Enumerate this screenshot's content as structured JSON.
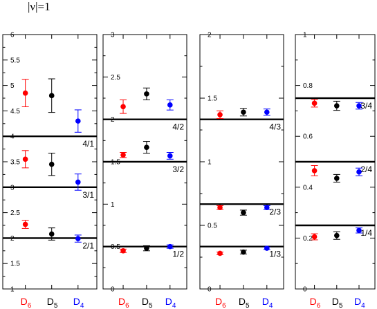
{
  "title": "|ν|=1",
  "colors": {
    "D6": "#ff0000",
    "D5": "#000000",
    "D4": "#0000ff"
  },
  "chart_data": [
    {
      "type": "scatter",
      "categories": [
        {
          "main": "D",
          "sub": "6",
          "color": "#ff0000"
        },
        {
          "main": "D",
          "sub": "5",
          "color": "#000000"
        },
        {
          "main": "D",
          "sub": "4",
          "color": "#0000ff"
        }
      ],
      "ylim": [
        1,
        6
      ],
      "yticks": [
        1,
        1.5,
        2,
        2.5,
        3,
        3.5,
        4,
        4.5,
        5,
        5.5,
        6
      ],
      "ytick_labels": [
        "1",
        "1.5",
        "2",
        "2.5",
        "3",
        "3.5",
        "4",
        "4.5",
        "5",
        "5.5",
        "6"
      ],
      "series": [
        {
          "color": "#ff0000",
          "x": 0,
          "points": [
            {
              "y": 4.85,
              "err": 0.27
            },
            {
              "y": 3.55,
              "err": 0.17
            },
            {
              "y": 2.27,
              "err": 0.08
            }
          ]
        },
        {
          "color": "#000000",
          "x": 1,
          "points": [
            {
              "y": 4.8,
              "err": 0.33
            },
            {
              "y": 3.45,
              "err": 0.22
            },
            {
              "y": 2.08,
              "err": 0.12
            }
          ]
        },
        {
          "color": "#0000ff",
          "x": 2,
          "points": [
            {
              "y": 4.3,
              "err": 0.22
            },
            {
              "y": 3.1,
              "err": 0.16
            },
            {
              "y": 1.99,
              "err": 0.07
            }
          ]
        }
      ],
      "reference_lines": [
        {
          "y": 4.0,
          "label": "4/1"
        },
        {
          "y": 3.0,
          "label": "3/1"
        },
        {
          "y": 2.0,
          "label": "2/1"
        }
      ]
    },
    {
      "type": "scatter",
      "categories": [
        {
          "main": "D",
          "sub": "6",
          "color": "#ff0000"
        },
        {
          "main": "D",
          "sub": "5",
          "color": "#000000"
        },
        {
          "main": "D",
          "sub": "4",
          "color": "#0000ff"
        }
      ],
      "ylim": [
        0,
        3
      ],
      "yticks": [
        0,
        0.5,
        1,
        1.5,
        2,
        2.5,
        3
      ],
      "ytick_labels": [
        "0",
        "0.5",
        "1",
        "1.5",
        "2",
        "2.5",
        "3"
      ],
      "series": [
        {
          "color": "#ff0000",
          "x": 0,
          "points": [
            {
              "y": 2.15,
              "err": 0.08
            },
            {
              "y": 1.58,
              "err": 0.03
            },
            {
              "y": 0.45,
              "err": 0.02
            }
          ]
        },
        {
          "color": "#000000",
          "x": 1,
          "points": [
            {
              "y": 2.3,
              "err": 0.07
            },
            {
              "y": 1.67,
              "err": 0.07
            },
            {
              "y": 0.48,
              "err": 0.03
            }
          ]
        },
        {
          "color": "#0000ff",
          "x": 2,
          "points": [
            {
              "y": 2.17,
              "err": 0.06
            },
            {
              "y": 1.57,
              "err": 0.04
            },
            {
              "y": 0.5,
              "err": 0.02
            }
          ]
        }
      ],
      "reference_lines": [
        {
          "y": 2.0,
          "label": "4/2"
        },
        {
          "y": 1.5,
          "label": "3/2"
        },
        {
          "y": 0.5,
          "label": "1/2"
        }
      ]
    },
    {
      "type": "scatter",
      "categories": [
        {
          "main": "D",
          "sub": "6",
          "color": "#ff0000"
        },
        {
          "main": "D",
          "sub": "5",
          "color": "#000000"
        },
        {
          "main": "D",
          "sub": "4",
          "color": "#0000ff"
        }
      ],
      "ylim": [
        0,
        2
      ],
      "yticks": [
        0,
        0.5,
        1,
        1.5,
        2
      ],
      "ytick_labels": [
        "0",
        "0.5",
        "1",
        "1.5",
        "2"
      ],
      "series": [
        {
          "color": "#ff0000",
          "x": 0,
          "points": [
            {
              "y": 1.37,
              "err": 0.03
            },
            {
              "y": 0.64,
              "err": 0.015
            },
            {
              "y": 0.28,
              "err": 0.01
            }
          ]
        },
        {
          "color": "#000000",
          "x": 1,
          "points": [
            {
              "y": 1.39,
              "err": 0.03
            },
            {
              "y": 0.6,
              "err": 0.02
            },
            {
              "y": 0.29,
              "err": 0.015
            }
          ]
        },
        {
          "color": "#0000ff",
          "x": 2,
          "points": [
            {
              "y": 1.39,
              "err": 0.025
            },
            {
              "y": 0.64,
              "err": 0.015
            },
            {
              "y": 0.32,
              "err": 0.01
            }
          ]
        }
      ],
      "reference_lines": [
        {
          "y": 1.333,
          "label": "4/3"
        },
        {
          "y": 0.667,
          "label": "2/3"
        },
        {
          "y": 0.333,
          "label": "1/3"
        }
      ]
    },
    {
      "type": "scatter",
      "categories": [
        {
          "main": "D",
          "sub": "6",
          "color": "#ff0000"
        },
        {
          "main": "D",
          "sub": "5",
          "color": "#000000"
        },
        {
          "main": "D",
          "sub": "4",
          "color": "#0000ff"
        }
      ],
      "ylim": [
        0,
        1
      ],
      "yticks": [
        0,
        0.2,
        0.4,
        0.6,
        0.8,
        1
      ],
      "ytick_labels": [
        "0",
        "0.2",
        "0.4",
        "0.6",
        "0.8",
        "1"
      ],
      "series": [
        {
          "color": "#ff0000",
          "x": 0,
          "points": [
            {
              "y": 0.73,
              "err": 0.015
            },
            {
              "y": 0.465,
              "err": 0.02
            },
            {
              "y": 0.205,
              "err": 0.012
            }
          ]
        },
        {
          "color": "#000000",
          "x": 1,
          "points": [
            {
              "y": 0.72,
              "err": 0.018
            },
            {
              "y": 0.435,
              "err": 0.015
            },
            {
              "y": 0.21,
              "err": 0.015
            }
          ]
        },
        {
          "color": "#0000ff",
          "x": 2,
          "points": [
            {
              "y": 0.72,
              "err": 0.013
            },
            {
              "y": 0.46,
              "err": 0.015
            },
            {
              "y": 0.23,
              "err": 0.01
            }
          ]
        }
      ],
      "reference_lines": [
        {
          "y": 0.75,
          "label": "3/4"
        },
        {
          "y": 0.5,
          "label": "2/4"
        },
        {
          "y": 0.25,
          "label": "1/4"
        }
      ]
    }
  ]
}
